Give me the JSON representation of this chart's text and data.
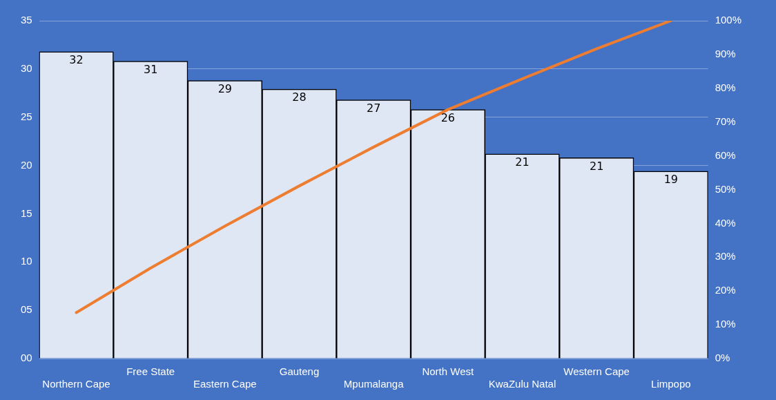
{
  "chart_data": {
    "type": "bar",
    "categories": [
      "Northern Cape",
      "Free State",
      "Eastern Cape",
      "Gauteng",
      "Mpumalanga",
      "North West",
      "KwaZulu Natal",
      "Western Cape",
      "Limpopo"
    ],
    "series": [
      {
        "color": "#dfe7f5",
        "values": [
          31.8,
          30.8,
          28.8,
          27.9,
          26.8,
          25.8,
          21.2,
          20.8,
          19.4
        ],
        "value_labels": [
          "32",
          "31",
          "29",
          "28",
          "27",
          "26",
          "21",
          "21",
          "19"
        ]
      },
      {
        "type": "line",
        "axis": "y2",
        "color": "#ed7d31",
        "values": [
          13.6,
          26.8,
          39.2,
          51.1,
          62.6,
          73.7,
          82.8,
          91.7,
          100
        ]
      }
    ],
    "ylim": [
      0,
      35
    ],
    "yticks": [
      {
        "value": 0,
        "label": "00"
      },
      {
        "value": 5,
        "label": "05"
      },
      10,
      15,
      20,
      25,
      30,
      35
    ],
    "y2lim": [
      0,
      100
    ],
    "y2ticks": [
      {
        "value": 0,
        "label": "0%"
      },
      {
        "value": 10,
        "label": "10%"
      },
      {
        "value": 20,
        "label": "20%"
      },
      {
        "value": 30,
        "label": "30%"
      },
      {
        "value": 40,
        "label": "40%"
      },
      {
        "value": 50,
        "label": "50%"
      },
      {
        "value": 60,
        "label": "60%"
      },
      {
        "value": 70,
        "label": "70%"
      },
      {
        "value": 80,
        "label": "80%"
      },
      {
        "value": 90,
        "label": "90%"
      },
      {
        "value": 100,
        "label": "100%"
      }
    ],
    "grid": "y",
    "legend": false,
    "marker": "none",
    "line_style": "solid"
  }
}
